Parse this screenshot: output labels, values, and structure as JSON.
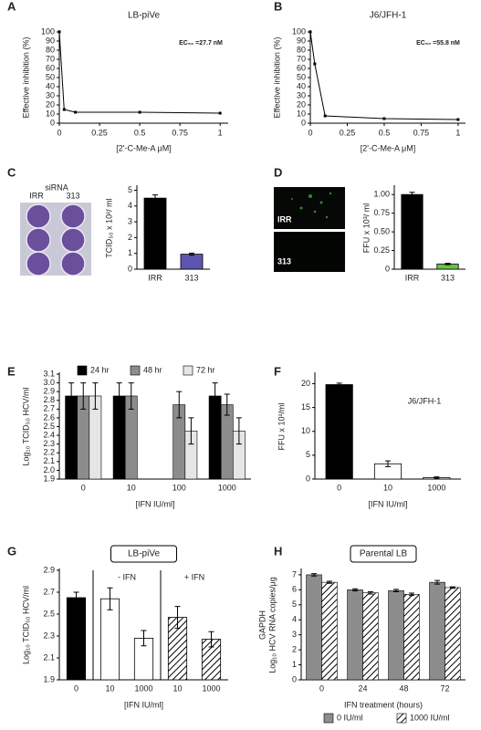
{
  "chart_data": [
    {
      "type": "line",
      "panel": "A",
      "title": "LB-piVe",
      "annotation": "EC₅₀ =27.7 nM",
      "ylabel": "Effective inhibition (%)",
      "xlabel": "[2'-C-Me-A μM]",
      "x": [
        0,
        0.03,
        0.1,
        0.5,
        1
      ],
      "values": [
        100,
        15,
        12,
        12,
        11
      ],
      "xlim": [
        0,
        1.05
      ],
      "xticks": [
        0,
        0.25,
        0.5,
        0.75,
        1
      ],
      "ylim": [
        0,
        100
      ],
      "yticks": [
        0,
        10,
        20,
        30,
        40,
        50,
        60,
        70,
        80,
        90,
        100
      ],
      "color": "#000000"
    },
    {
      "type": "line",
      "panel": "B",
      "title": "J6/JFH-1",
      "annotation": "EC₅₀ =55.8 nM",
      "ylabel": "Effective inhibition (%)",
      "xlabel": "[2'-C-Me-A μM]",
      "x": [
        0,
        0.03,
        0.1,
        0.5,
        1
      ],
      "values": [
        100,
        65,
        8,
        5,
        4
      ],
      "xlim": [
        0,
        1.05
      ],
      "xticks": [
        0,
        0.25,
        0.5,
        0.75,
        1
      ],
      "ylim": [
        0,
        100
      ],
      "yticks": [
        0,
        10,
        20,
        30,
        40,
        50,
        60,
        70,
        80,
        90,
        100
      ],
      "color": "#000000"
    },
    {
      "type": "bar",
      "panel": "C",
      "image_labels": [
        "siRNA",
        "IRR",
        "313"
      ],
      "ylabel": "TCID₅₀ x 10²/ ml",
      "categories": [
        "IRR",
        "313"
      ],
      "values": [
        4.5,
        0.95
      ],
      "errors": [
        0.2,
        0.07
      ],
      "colors": [
        "#000000",
        "#5e55b0"
      ],
      "ylim": [
        0,
        5.2
      ],
      "yticks": [
        0,
        1,
        2,
        3,
        4,
        5
      ]
    },
    {
      "type": "bar",
      "panel": "D",
      "image_labels": [
        "IRR",
        "313"
      ],
      "ylabel": "FFU x 10³/ ml",
      "categories": [
        "IRR",
        "313"
      ],
      "values": [
        1.0,
        0.07
      ],
      "errors": [
        0.03,
        0.01
      ],
      "colors": [
        "#000000",
        "#6cc04a"
      ],
      "ylim": [
        0,
        1.1
      ],
      "yticks": [
        0,
        0.25,
        {
          "value": 0.5,
          "label": "0.50"
        },
        0.75,
        {
          "value": 1,
          "label": "1.00"
        }
      ]
    },
    {
      "type": "bar",
      "panel": "E",
      "ylabel": "Log₁₀ TCID₅₀ HCV/ml",
      "xlabel": "[IFN IU/ml]",
      "categories": [
        "0",
        "10",
        "100",
        "1000"
      ],
      "series": [
        {
          "name": "24 hr",
          "color": "#000000",
          "values": [
            2.85,
            2.85,
            null,
            2.85
          ],
          "errors": [
            0.15,
            0.15,
            null,
            0.15
          ]
        },
        {
          "name": "48 hr",
          "color": "#8c8c8c",
          "values": [
            2.85,
            2.85,
            2.75,
            2.75
          ],
          "errors": [
            0.15,
            0.15,
            0.15,
            0.12
          ]
        },
        {
          "name": "72 hr",
          "color": "#e6e6e6",
          "values": [
            2.85,
            null,
            2.45,
            2.45
          ],
          "errors": [
            0.15,
            null,
            0.15,
            0.15
          ]
        }
      ],
      "legend": "top",
      "ylim": [
        1.9,
        3.1
      ],
      "yticks": [
        1.9,
        {
          "value": 2,
          "label": "2.0"
        },
        2.1,
        2.2,
        2.3,
        2.4,
        2.5,
        2.6,
        2.7,
        2.8,
        2.9,
        {
          "value": 3,
          "label": "3.0"
        },
        3.1
      ]
    },
    {
      "type": "bar",
      "panel": "F",
      "annotation": "J6/JFH-1",
      "ylabel": "FFU x 10²/ml",
      "xlabel": "[IFN IU/ml]",
      "categories": [
        "0",
        "10",
        "1000"
      ],
      "values": [
        19.8,
        3.2,
        0.3
      ],
      "errors": [
        0.3,
        0.6,
        0.15
      ],
      "colors": [
        "#000000",
        "#ffffff",
        "#ffffff"
      ],
      "ylim": [
        0,
        22
      ],
      "yticks": [
        0,
        5,
        10,
        15,
        20
      ]
    },
    {
      "type": "bar",
      "panel": "G",
      "title": "LB-piVe",
      "group_labels": [
        "- IFN",
        "+ IFN"
      ],
      "ylabel": "Log₁₀ TCID₅₀ HCV/ml",
      "xlabel": "[IFN IU/ml]",
      "categories": [
        "0",
        "10",
        "1000",
        "10",
        "1000"
      ],
      "values": [
        2.65,
        2.64,
        2.28,
        2.47,
        2.27
      ],
      "errors": [
        0.05,
        0.1,
        0.07,
        0.1,
        0.07
      ],
      "colors": [
        "#000000",
        "#ffffff",
        "#ffffff",
        "#ffffff",
        "#ffffff"
      ],
      "patterns": [
        "solid",
        "solid",
        "solid",
        "hatch",
        "hatch"
      ],
      "ylim": [
        1.9,
        2.9
      ],
      "yticks": [
        1.9,
        2.1,
        2.3,
        2.5,
        2.7,
        2.9
      ]
    },
    {
      "type": "bar",
      "panel": "H",
      "title": "Parental LB",
      "ylabel": [
        "Log₁₀ HCV RNA copies/μg",
        "GAPDH"
      ],
      "xlabel": "IFN treatment (hours)",
      "categories": [
        "0",
        "24",
        "48",
        "72"
      ],
      "series": [
        {
          "name": "0 IU/ml",
          "color": "#8c8c8c",
          "pattern": "solid",
          "values": [
            7.0,
            6.0,
            5.95,
            6.5
          ],
          "errors": [
            0.08,
            0.07,
            0.08,
            0.12
          ]
        },
        {
          "name": "1000 IU/ml",
          "color": "#ffffff",
          "pattern": "hatch",
          "values": [
            6.5,
            5.8,
            5.7,
            6.15
          ],
          "errors": [
            0.07,
            0.08,
            0.08,
            0.05
          ]
        }
      ],
      "legend": "bottom",
      "ylim": [
        0,
        7.3
      ],
      "yticks": [
        0,
        1,
        2,
        3,
        4,
        5,
        6,
        7
      ]
    }
  ]
}
